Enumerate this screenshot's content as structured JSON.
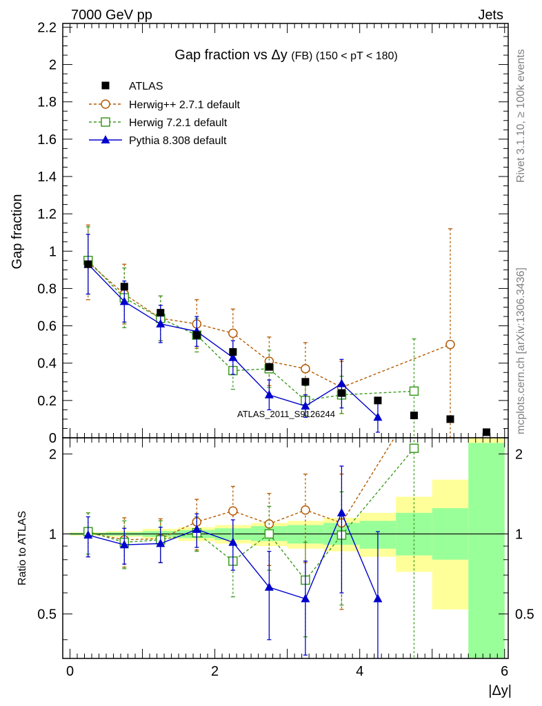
{
  "header": {
    "left": "7000 GeV pp",
    "right": "Jets"
  },
  "side_labels": {
    "rivet": "Rivet 3.1.10, ≥ 100k events",
    "mcplots": "mcplots.cern.ch [arXiv:1306.3436]"
  },
  "chart_data": [
    {
      "type": "scatter",
      "panel": "main",
      "title": "Gap fraction vs Δy (FB) (150 < pT < 180)",
      "title_parts": {
        "main": "Gap fraction vs",
        "delta": "Δy",
        "suffix": "(FB) (150 < pT < 180)"
      },
      "ylabel": "Gap fraction",
      "xlabel": "",
      "xlim": [
        -0.1,
        6.05
      ],
      "ylim": [
        0,
        2.22
      ],
      "yticks": [
        "0",
        "0.2",
        "0.4",
        "0.6",
        "0.8",
        "1",
        "1.2",
        "1.4",
        "1.6",
        "1.8",
        "2",
        "2.2"
      ],
      "watermark": "ATLAS_2011_S9126244",
      "legend_position": "top-left",
      "series": [
        {
          "name": "ATLAS",
          "style": "data",
          "color": "#000000",
          "x": [
            0.25,
            0.75,
            1.25,
            1.75,
            2.25,
            2.75,
            3.25,
            3.75,
            4.25,
            4.75,
            5.25,
            5.75
          ],
          "y": [
            0.93,
            0.81,
            0.67,
            0.55,
            0.46,
            0.38,
            0.3,
            0.24,
            0.2,
            0.12,
            0.1,
            0.03
          ]
        },
        {
          "name": "Herwig++ 2.7.1 default",
          "style": "circle-dashed",
          "color": "#b35900",
          "x": [
            0.25,
            0.75,
            1.25,
            1.75,
            2.25,
            2.75,
            3.25,
            3.75,
            5.25
          ],
          "y": [
            0.94,
            0.77,
            0.64,
            0.61,
            0.56,
            0.41,
            0.37,
            0.27,
            0.5
          ],
          "err": [
            0.2,
            0.16,
            0.12,
            0.13,
            0.13,
            0.13,
            0.14,
            0.14,
            0.62
          ]
        },
        {
          "name": "Herwig 7.2.1 default",
          "style": "square-dashed",
          "color": "#3a9a1f",
          "x": [
            0.25,
            0.75,
            1.25,
            1.75,
            2.25,
            2.75,
            3.25,
            3.75,
            4.75
          ],
          "y": [
            0.95,
            0.75,
            0.64,
            0.55,
            0.36,
            0.37,
            0.2,
            0.23,
            0.25
          ],
          "err": [
            0.18,
            0.16,
            0.12,
            0.09,
            0.1,
            0.1,
            0.08,
            0.1,
            0.28
          ]
        },
        {
          "name": "Pythia 8.308 default",
          "style": "triangle-solid",
          "color": "#0000cc",
          "x": [
            0.25,
            0.75,
            1.25,
            1.75,
            2.25,
            2.75,
            3.25,
            3.75,
            4.25
          ],
          "y": [
            0.93,
            0.73,
            0.61,
            0.57,
            0.43,
            0.23,
            0.17,
            0.29,
            0.11
          ],
          "err": [
            0.16,
            0.11,
            0.1,
            0.08,
            0.09,
            0.08,
            0.06,
            0.13,
            0.08
          ]
        }
      ]
    },
    {
      "type": "line",
      "panel": "ratio",
      "ylabel": "Ratio to ATLAS",
      "xlabel": "|Δy|",
      "xlim": [
        -0.1,
        6.05
      ],
      "ylim": [
        0.34,
        2.3
      ],
      "xticks": [
        "0",
        "2",
        "4",
        "6"
      ],
      "yticks": [
        "0.5",
        "1",
        "2"
      ],
      "bands": {
        "edges": [
          0,
          0.5,
          1,
          1.5,
          2,
          2.5,
          3,
          3.5,
          4,
          4.5,
          5,
          5.5,
          6
        ],
        "yellow": [
          [
            0.985,
            1.015
          ],
          [
            0.975,
            1.025
          ],
          [
            0.96,
            1.045
          ],
          [
            0.94,
            1.06
          ],
          [
            0.92,
            1.08
          ],
          [
            0.9,
            1.1
          ],
          [
            0.88,
            1.12
          ],
          [
            0.86,
            1.15
          ],
          [
            0.82,
            1.2
          ],
          [
            0.72,
            1.38
          ],
          [
            0.52,
            1.6
          ],
          [
            0.34,
            2.3
          ]
        ],
        "green": [
          [
            0.99,
            1.01
          ],
          [
            0.985,
            1.015
          ],
          [
            0.975,
            1.025
          ],
          [
            0.965,
            1.035
          ],
          [
            0.95,
            1.05
          ],
          [
            0.94,
            1.07
          ],
          [
            0.92,
            1.08
          ],
          [
            0.91,
            1.1
          ],
          [
            0.88,
            1.12
          ],
          [
            0.83,
            1.2
          ],
          [
            0.8,
            1.25
          ],
          [
            0.34,
            2.2
          ]
        ]
      },
      "series": [
        {
          "name": "Herwig++ 2.7.1 default",
          "color": "#b35900",
          "x": [
            0.25,
            0.75,
            1.25,
            1.75,
            2.25,
            2.75,
            3.25,
            3.75
          ],
          "y": [
            1.01,
            0.95,
            0.96,
            1.11,
            1.22,
            1.09,
            1.23,
            1.1
          ],
          "err": [
            0.19,
            0.2,
            0.18,
            0.24,
            0.29,
            0.33,
            0.45,
            0.58
          ],
          "tail_to": [
            4.6,
            2.6
          ]
        },
        {
          "name": "Herwig 7.2.1 default",
          "color": "#3a9a1f",
          "x": [
            0.25,
            0.75,
            1.25,
            1.75,
            2.25,
            2.75,
            3.25,
            3.75,
            4.75
          ],
          "y": [
            1.02,
            0.93,
            0.95,
            1.01,
            0.79,
            1.0,
            0.67,
            0.99,
            2.1
          ],
          "err": [
            0.18,
            0.19,
            0.17,
            0.15,
            0.21,
            0.27,
            0.26,
            0.45,
            1.9
          ]
        },
        {
          "name": "Pythia 8.308 default",
          "color": "#0000cc",
          "x": [
            0.25,
            0.75,
            1.25,
            1.75,
            2.25,
            2.75,
            3.25,
            3.75,
            4.25
          ],
          "y": [
            0.99,
            0.91,
            0.92,
            1.04,
            0.93,
            0.63,
            0.57,
            1.2,
            0.57
          ],
          "err": [
            0.17,
            0.14,
            0.14,
            0.15,
            0.2,
            0.23,
            0.22,
            0.6,
            0.45
          ]
        }
      ]
    }
  ]
}
